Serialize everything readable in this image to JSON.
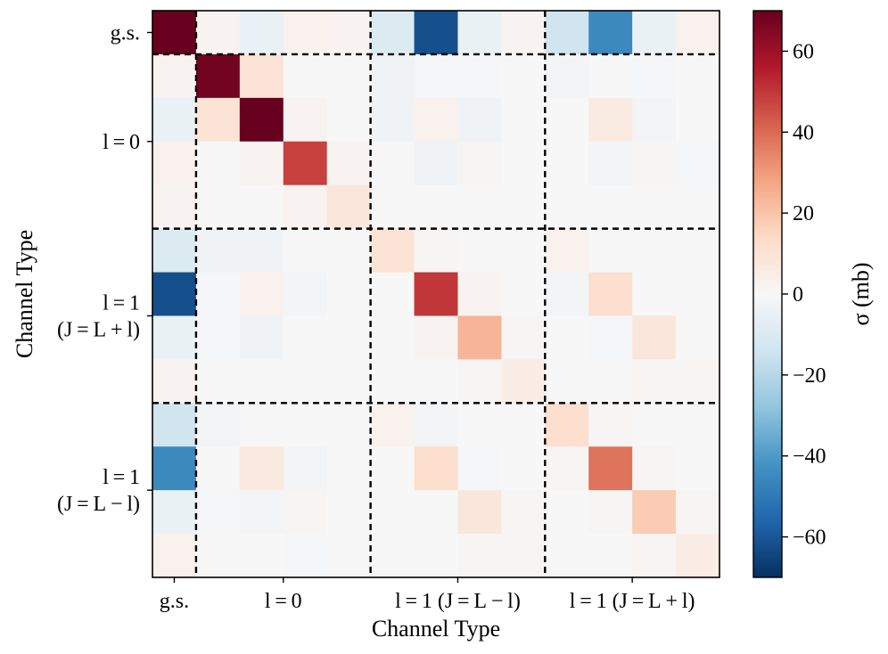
{
  "chart_data": {
    "type": "heatmap",
    "title": "",
    "xlabel": "Channel Type",
    "ylabel": "Channel Type",
    "rows": 13,
    "cols": 13,
    "group_boundaries": [
      1,
      5,
      9
    ],
    "x_group_labels": [
      "g.s.",
      "l = 0",
      "l = 1 (J = L − l)",
      "l = 1 (J = L + l)"
    ],
    "y_group_labels": [
      {
        "lines": [
          "g.s."
        ]
      },
      {
        "lines": [
          "l = 0"
        ]
      },
      {
        "lines": [
          "l = 1",
          "(J = L + l)"
        ]
      },
      {
        "lines": [
          "l = 1",
          "(J = L − l)"
        ]
      }
    ],
    "values": [
      [
        70,
        2,
        -5,
        3,
        2,
        -10,
        -62,
        -5,
        2,
        -14,
        -45,
        -5,
        3
      ],
      [
        2,
        68,
        10,
        0,
        0,
        -3,
        -1,
        -1,
        0,
        -2,
        0,
        -1,
        0
      ],
      [
        -5,
        10,
        70,
        2,
        0,
        -3,
        3,
        -3,
        0,
        0,
        6,
        -2,
        0
      ],
      [
        3,
        0,
        2,
        48,
        2,
        0,
        -3,
        1,
        0,
        0,
        -2,
        1,
        -1
      ],
      [
        2,
        0,
        0,
        2,
        8,
        0,
        0,
        0,
        0,
        0,
        0,
        0,
        0
      ],
      [
        -10,
        -3,
        -3,
        0,
        0,
        10,
        1,
        0,
        0,
        3,
        0,
        0,
        0
      ],
      [
        -62,
        -1,
        3,
        -2,
        0,
        0,
        50,
        2,
        0,
        -2,
        12,
        0,
        0
      ],
      [
        -5,
        -1,
        -3,
        0,
        0,
        0,
        2,
        24,
        1,
        0,
        -1,
        8,
        0
      ],
      [
        2,
        0,
        0,
        0,
        0,
        0,
        0,
        1,
        5,
        0,
        0,
        1,
        1
      ],
      [
        -14,
        -2,
        0,
        0,
        0,
        3,
        -2,
        0,
        0,
        12,
        1,
        0,
        0
      ],
      [
        -45,
        0,
        7,
        -2,
        0,
        0,
        12,
        -1,
        0,
        1,
        38,
        1,
        0
      ],
      [
        -5,
        -1,
        -2,
        1,
        0,
        0,
        0,
        8,
        1,
        0,
        1,
        18,
        1
      ],
      [
        3,
        0,
        0,
        -1,
        0,
        0,
        0,
        1,
        1,
        0,
        0,
        1,
        5
      ]
    ],
    "colormap": "RdBu_r",
    "vmin": -70,
    "vmax": 70,
    "colorbar": {
      "label": "σ (mb)",
      "ticks": [
        60,
        40,
        20,
        0,
        -20,
        -40,
        -60
      ],
      "tick_labels": [
        "60",
        "40",
        "20",
        "0",
        "−20",
        "−40",
        "−60"
      ]
    },
    "grid": false,
    "legend": "none"
  }
}
